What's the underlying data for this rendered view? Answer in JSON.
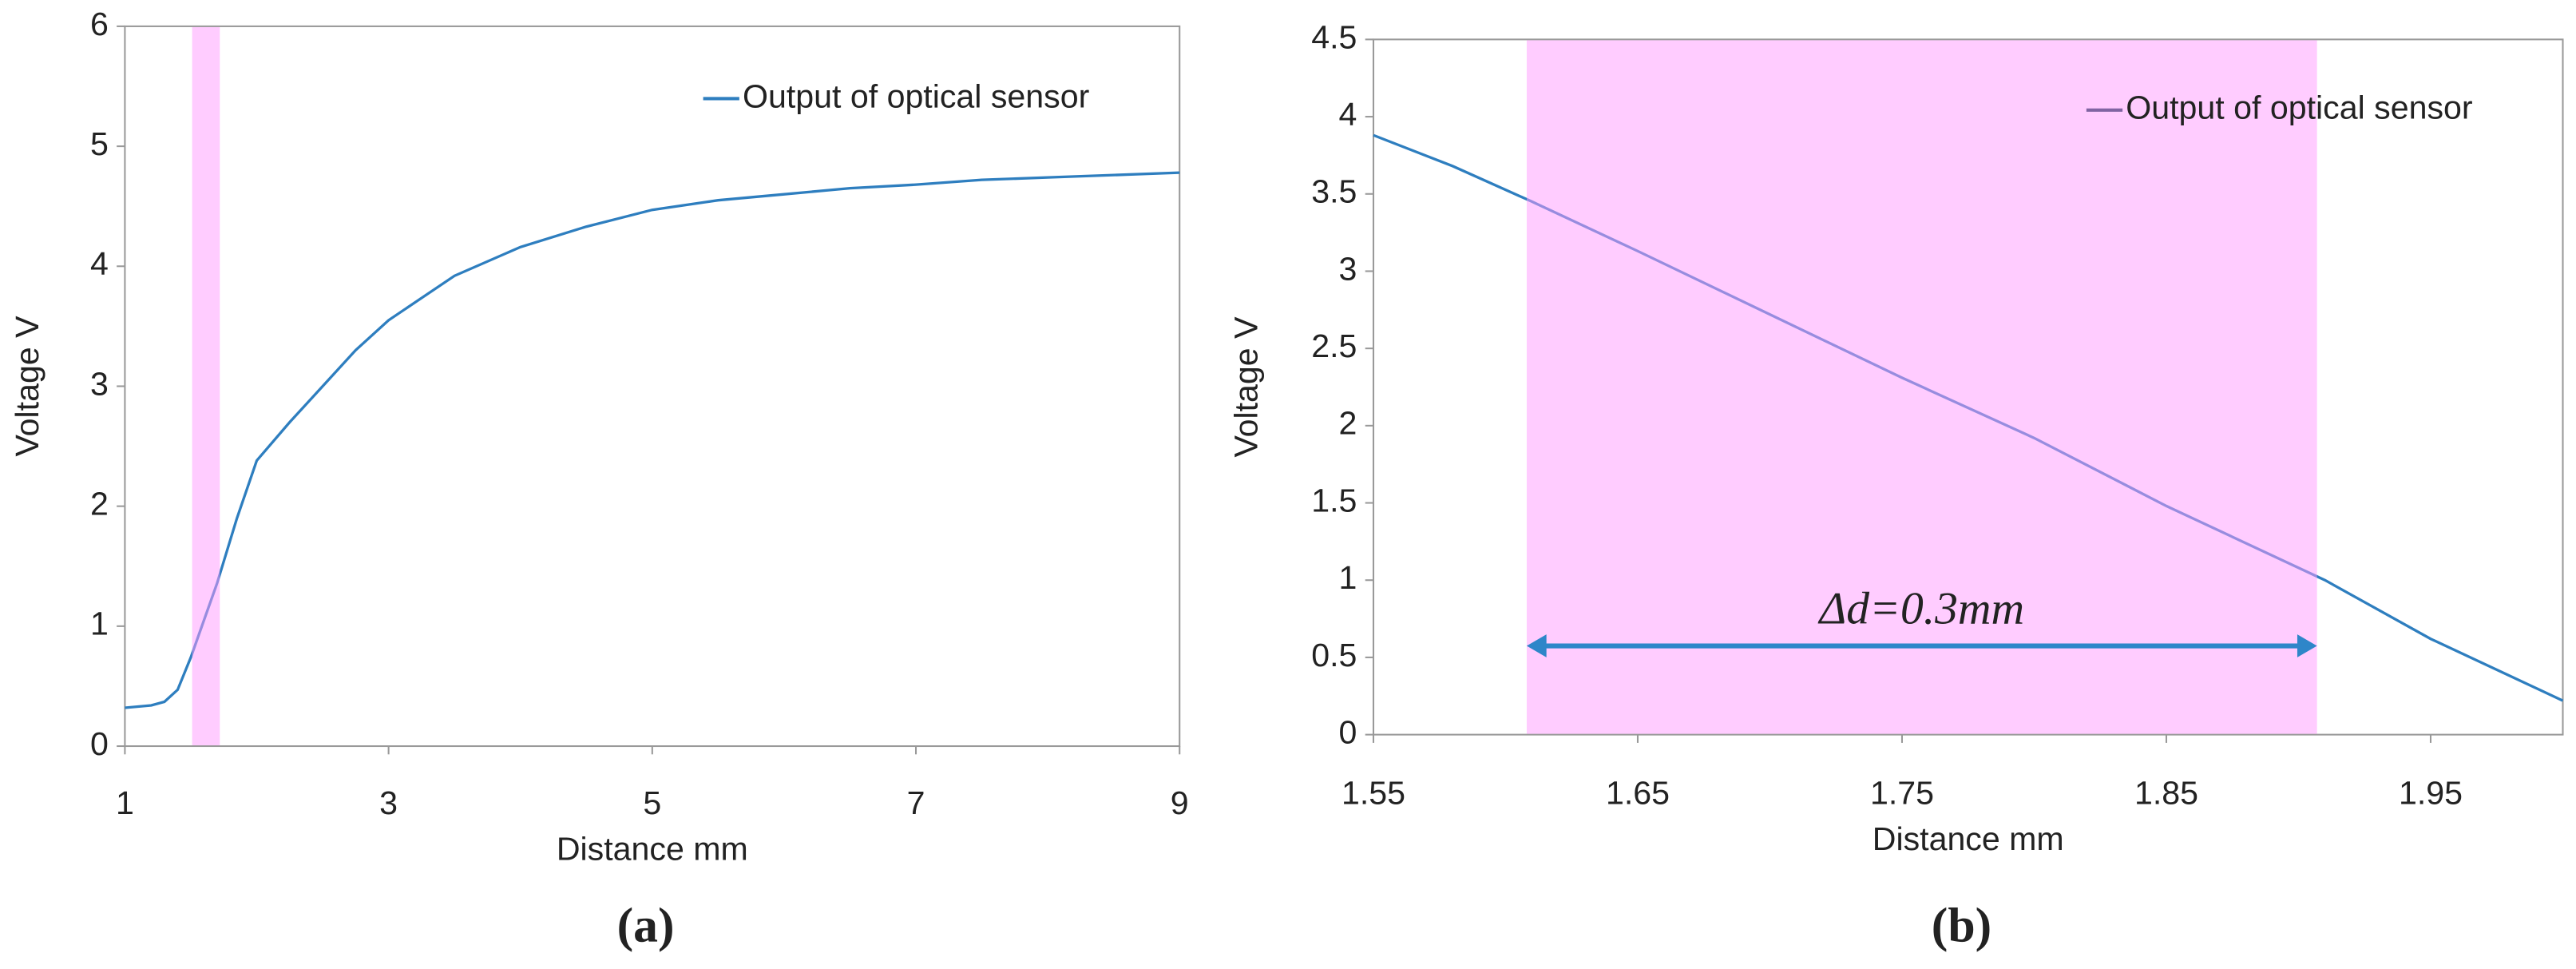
{
  "chart_data": [
    {
      "type": "line",
      "caption": "(a)",
      "xlabel": "Distance mm",
      "ylabel": "Voltage V",
      "x": [
        1,
        1.2,
        1.3,
        1.4,
        1.5,
        1.6,
        1.7,
        1.85,
        2,
        2.25,
        2.5,
        2.75,
        3,
        3.5,
        4,
        4.5,
        5,
        5.5,
        6,
        6.5,
        7,
        7.5,
        8,
        8.5,
        9
      ],
      "series": [
        {
          "name": "Output of optical sensor",
          "color": "#2e7ebf",
          "values": [
            0.32,
            0.34,
            0.37,
            0.47,
            0.74,
            1.05,
            1.36,
            1.9,
            2.38,
            2.7,
            3.0,
            3.3,
            3.55,
            3.92,
            4.16,
            4.33,
            4.47,
            4.55,
            4.6,
            4.65,
            4.68,
            4.72,
            4.74,
            4.76,
            4.78
          ]
        }
      ],
      "xlim": [
        1,
        9
      ],
      "xticks": [
        1,
        3,
        5,
        7,
        9
      ],
      "ylim": [
        0,
        6
      ],
      "yticks": [
        0,
        1,
        2,
        3,
        4,
        5,
        6
      ],
      "highlight": [
        1.51,
        1.72
      ],
      "highlight_color": "#ff99ff",
      "legend": "upper right"
    },
    {
      "type": "line",
      "caption": "(b)",
      "xlabel": "Distance mm",
      "ylabel": "Voltage V",
      "x": [
        1.55,
        1.58,
        1.61,
        1.65,
        1.7,
        1.75,
        1.8,
        1.85,
        1.91,
        1.95,
        1.98,
        2.0
      ],
      "series": [
        {
          "name": "Output of optical sensor",
          "color": "#2e7ebf",
          "legend_color": "#8064a2",
          "values": [
            3.88,
            3.68,
            3.45,
            3.13,
            2.72,
            2.31,
            1.92,
            1.48,
            1.0,
            0.62,
            0.38,
            0.22
          ]
        }
      ],
      "xlim": [
        1.55,
        2.0
      ],
      "xticks": [
        1.55,
        1.65,
        1.75,
        1.85,
        1.95
      ],
      "ylim": [
        0,
        4.5
      ],
      "yticks": [
        0,
        0.5,
        1,
        1.5,
        2,
        2.5,
        3,
        3.5,
        4,
        4.5
      ],
      "highlight": [
        1.608,
        1.907
      ],
      "highlight_color": "#ff99ff",
      "legend": "upper right",
      "annotation": {
        "text": "Δd=0.3mm",
        "color": "#2e86c9"
      }
    }
  ]
}
